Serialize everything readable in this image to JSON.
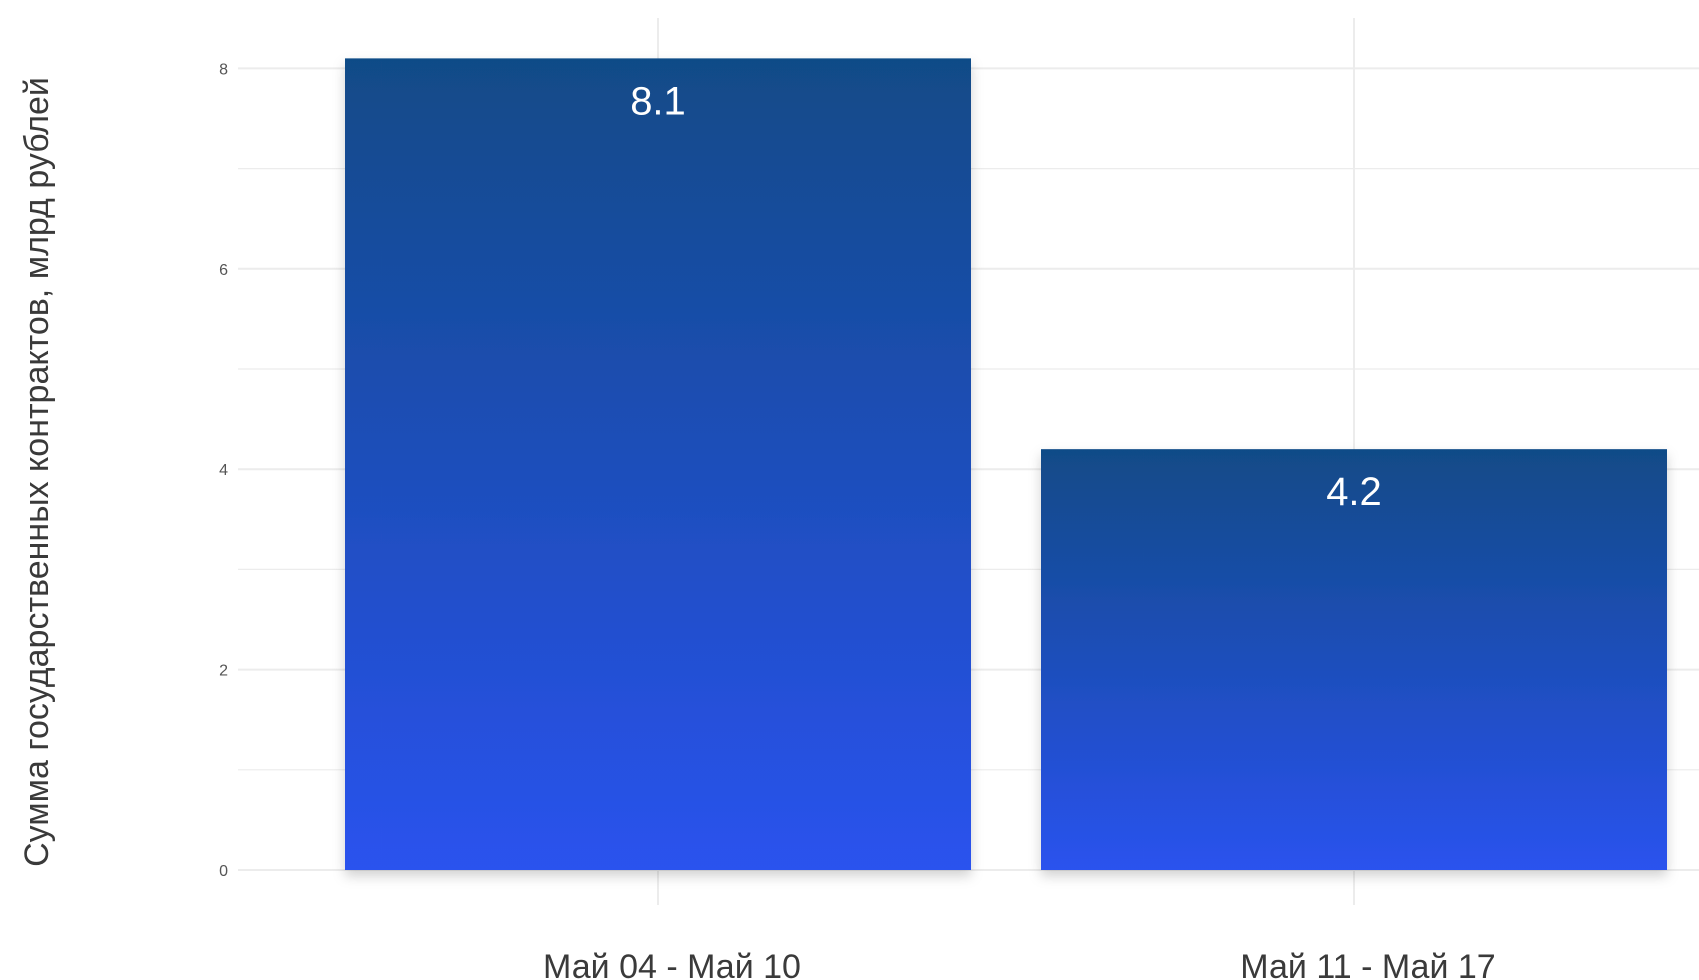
{
  "chart_data": {
    "type": "bar",
    "categories": [
      "Май 04 - Май 10",
      "Май 11 - Май 17"
    ],
    "values": [
      8.1,
      4.2
    ],
    "data_labels": [
      "8.1",
      "4.2"
    ],
    "ylabel": "Сумма государственных контрактов, млрд рублей",
    "ylim": [
      0,
      8.1
    ],
    "yticks": [
      0,
      2,
      4,
      6,
      8
    ],
    "ytick_labels": [
      "0",
      "2",
      "4",
      "6",
      "8"
    ],
    "grid": true,
    "legend": "none",
    "colors": {
      "bar_top": "#114b87",
      "bar_bottom": "#2a52ee",
      "grid": "#ececec",
      "text": "#3a3a3a"
    }
  }
}
